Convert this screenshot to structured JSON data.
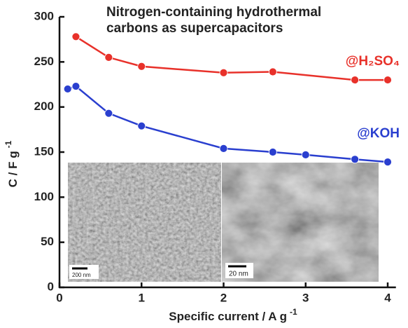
{
  "chart_data": {
    "type": "line",
    "title": [
      "Nitrogen-containing hydrothermal",
      "carbons as supercapacitors"
    ],
    "x_label": {
      "text": "Specific current / A g",
      "superscript": "-1"
    },
    "y_label": {
      "text": "C / F g",
      "superscript": "-1"
    },
    "xlim": [
      0,
      4.1
    ],
    "xticks": [
      0,
      1,
      2,
      3,
      4
    ],
    "ylim": [
      0,
      300
    ],
    "yticks": [
      0,
      50,
      100,
      150,
      200,
      250,
      300
    ],
    "grid": false,
    "series": [
      {
        "name": "@H₂SO₄",
        "color": "#e8312a",
        "x": [
          0.2,
          0.6,
          1.0,
          2.0,
          2.6,
          3.6,
          4.0
        ],
        "values": [
          278,
          255,
          245,
          238,
          239,
          230,
          230
        ]
      },
      {
        "name": "@KOH",
        "color": "#2a3fcf",
        "x": [
          0.1,
          0.2,
          0.6,
          1.0,
          2.0,
          2.6,
          3.0,
          3.6,
          4.0
        ],
        "values": [
          220,
          223,
          193,
          179,
          154,
          150,
          147,
          142,
          139
        ]
      }
    ],
    "insets": [
      {
        "scale_bar": "200 nm"
      },
      {
        "scale_bar": "20 nm"
      }
    ]
  }
}
